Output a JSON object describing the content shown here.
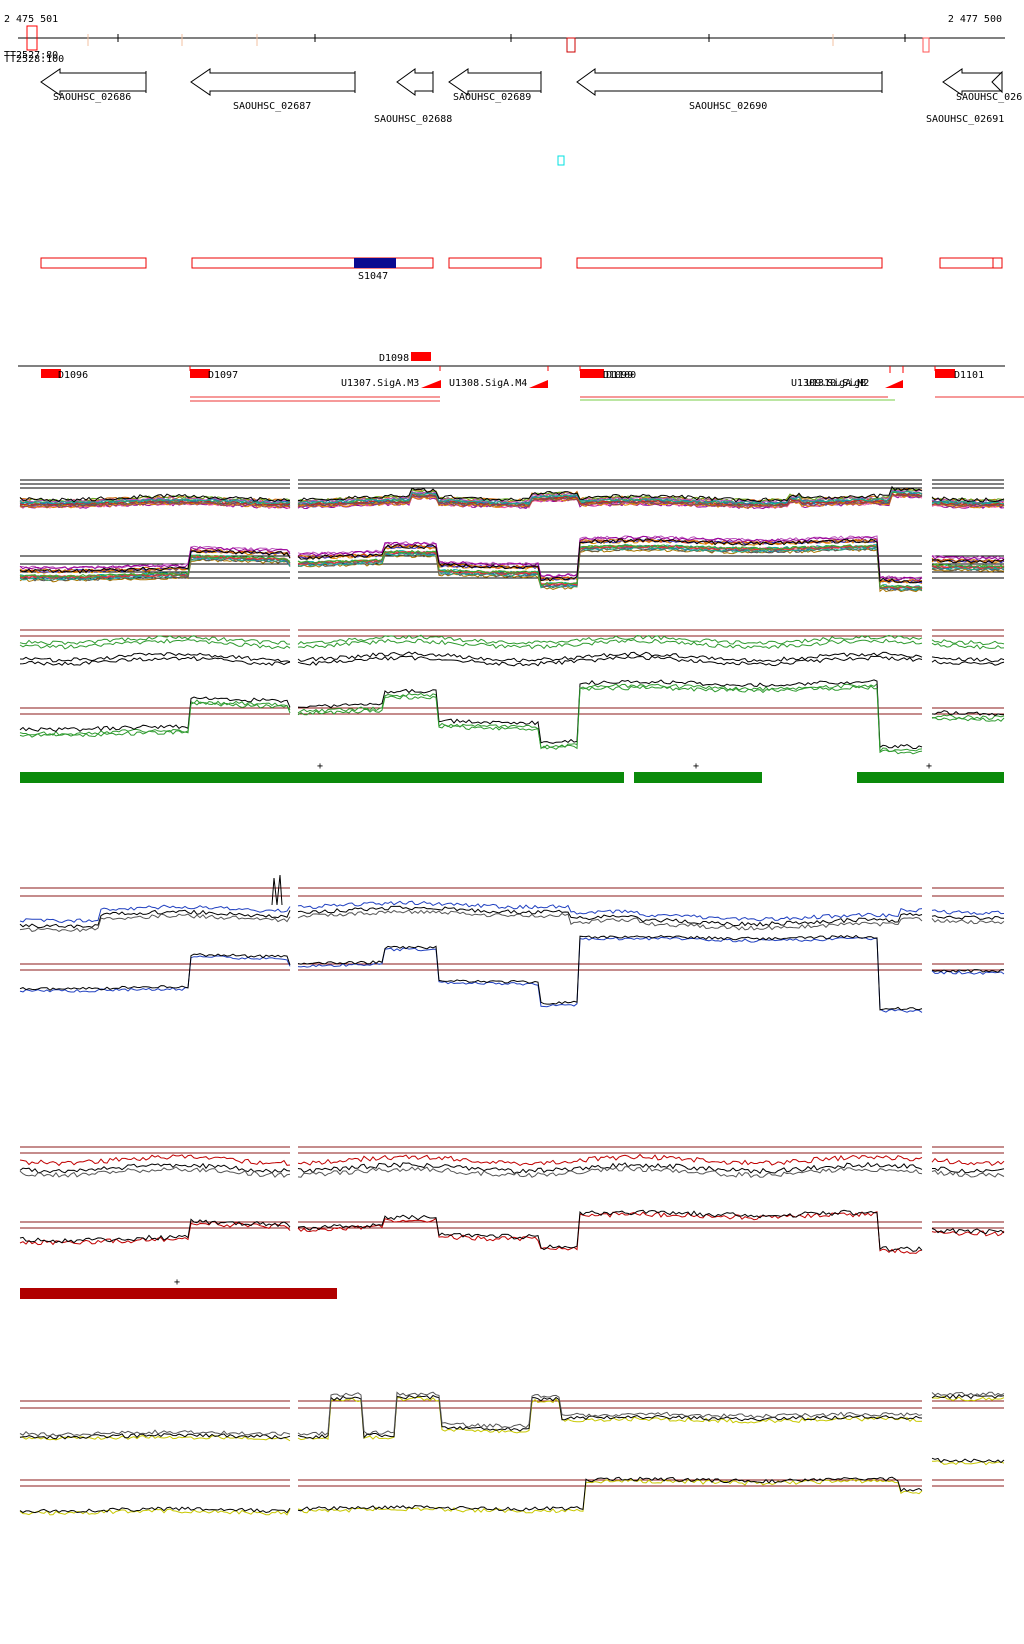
{
  "ruler": {
    "start_label": "2 475 501",
    "end_label": "2 477 500",
    "overlap_labels": [
      "TT2527:80",
      "TT2528:100"
    ]
  },
  "genes": [
    {
      "id": "SAOUHSC_02686",
      "strand": "-"
    },
    {
      "id": "SAOUHSC_02687",
      "strand": "-"
    },
    {
      "id": "SAOUHSC_02688",
      "strand": "-"
    },
    {
      "id": "SAOUHSC_02689",
      "strand": "-"
    },
    {
      "id": "SAOUHSC_02690",
      "strand": "-"
    },
    {
      "id": "SAOUHSC_02691",
      "strand": "-"
    },
    {
      "id": "SAOUHSC_026",
      "strand": "-"
    }
  ],
  "segment": {
    "label": "S1047"
  },
  "features": {
    "upper": [
      "D1098"
    ],
    "lower": [
      "D1096",
      "D1097",
      "U1307.SigA.M3",
      "U1308.SigA.M4",
      "D1099",
      "D1100",
      "U1309.SigA.M2",
      "U1310.SigB",
      "D1101"
    ]
  },
  "tracks": [
    {
      "name": "multi-condition",
      "color": "#888888"
    },
    {
      "name": "green-condition",
      "color": "#2e9a2e",
      "marker": "+"
    },
    {
      "name": "blue-condition",
      "color": "#2040c0"
    },
    {
      "name": "red-condition",
      "color": "#c00000",
      "marker": "+"
    },
    {
      "name": "yellow-condition",
      "color": "#c8c800"
    }
  ],
  "colors": {
    "gene_outline": "#000000",
    "feature_red": "#ff0000",
    "segment_blue": "#000080",
    "bar_green": "#0a8a0a",
    "bar_red": "#b00000",
    "threshold": "#8b1a1a"
  }
}
